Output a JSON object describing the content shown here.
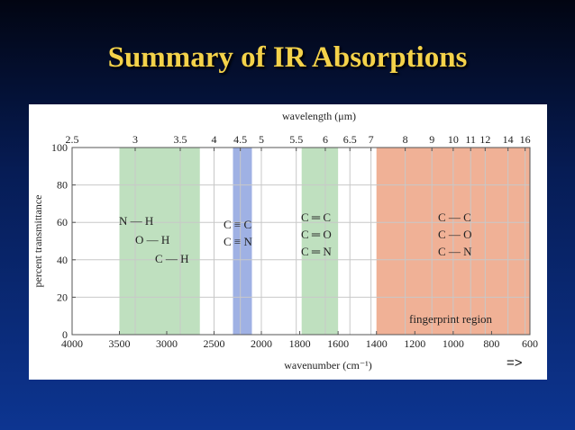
{
  "slide": {
    "title": "Summary of IR Absorptions",
    "next_label": "=>"
  },
  "colors": {
    "background": "#0b2a7c",
    "title": "#f4d24a",
    "band_green": "#bfe0bf",
    "band_blue": "#9fb1e4",
    "band_orange": "#f0b196"
  },
  "chart_data": {
    "type": "table",
    "description_type": "ir-absorption-chart",
    "xlabel": "wavenumber (cm⁻¹)",
    "x2label": "wavelength (μm)",
    "ylabel": "percent transmittance",
    "xlim": [
      4000,
      600
    ],
    "ylim": [
      0,
      100
    ],
    "x_ticks": [
      4000,
      3500,
      3000,
      2500,
      2000,
      1800,
      1600,
      1400,
      1200,
      1000,
      800,
      600
    ],
    "y_ticks": [
      0,
      20,
      40,
      60,
      80,
      100
    ],
    "wavelength_ticks": [
      {
        "label": "2.5",
        "um": 2.5
      },
      {
        "label": "3",
        "um": 3
      },
      {
        "label": "3.5",
        "um": 3.5
      },
      {
        "label": "4",
        "um": 4
      },
      {
        "label": "4.5",
        "um": 4.5
      },
      {
        "label": "5",
        "um": 5
      },
      {
        "label": "5.5",
        "um": 5.5
      },
      {
        "label": "6",
        "um": 6
      },
      {
        "label": "6.5",
        "um": 6.5
      },
      {
        "label": "7",
        "um": 7
      },
      {
        "label": "8",
        "um": 8
      },
      {
        "label": "9",
        "um": 9
      },
      {
        "label": "10",
        "um": 10
      },
      {
        "label": "11",
        "um": 11
      },
      {
        "label": "12",
        "um": 12
      },
      {
        "label": "14",
        "um": 14
      },
      {
        "label": "16",
        "um": 16
      }
    ],
    "bands": [
      {
        "from": 3500,
        "to": 2650,
        "color": "#bfe0bf",
        "labels": [
          "N — H",
          "O — H",
          "C — H"
        ]
      },
      {
        "from": 2300,
        "to": 2100,
        "color": "#9fb1e4",
        "labels": [
          "C ≡ C",
          "C ≡ N"
        ]
      },
      {
        "from": 1790,
        "to": 1600,
        "color": "#bfe0bf",
        "labels": [
          "C ═ C",
          "C ═ O",
          "C ═ N"
        ]
      },
      {
        "from": 1400,
        "to": 600,
        "color": "#f0b196",
        "labels": [
          "C — C",
          "C — O",
          "C — N"
        ]
      }
    ],
    "annotations": [
      "fingerprint region"
    ],
    "grid": true
  }
}
